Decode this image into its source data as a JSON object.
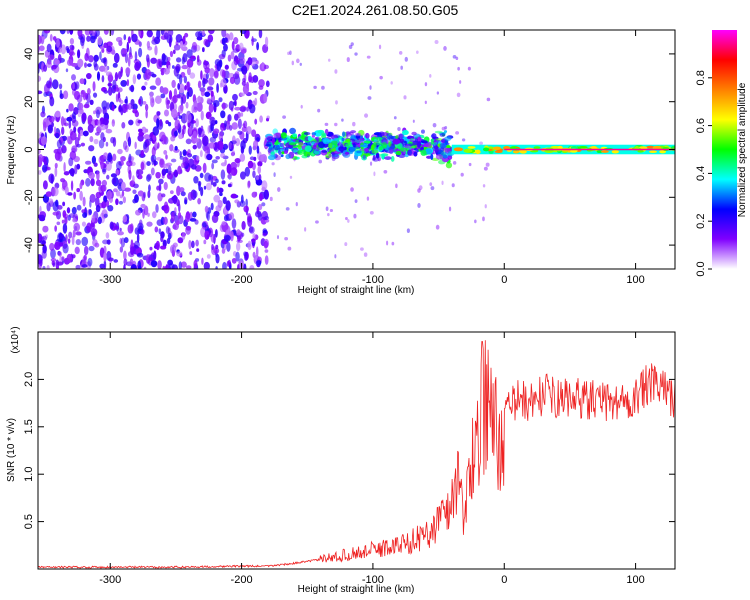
{
  "figure_title": "C2E1.2024.261.08.50.G05",
  "chart_data": [
    {
      "type": "heatmap",
      "title": "C2E1.2024.261.08.50.G05",
      "xlabel": "Height of straight line (km)",
      "ylabel": "Frequency (Hz)",
      "xlim": [
        -355,
        130
      ],
      "ylim": [
        -50,
        50
      ],
      "xticks": [
        -300,
        -200,
        -100,
        0,
        100
      ],
      "yticks": [
        -40,
        -20,
        0,
        20,
        40
      ],
      "colorbar": {
        "label": "Normalized spectral amplitude",
        "range": [
          0,
          1
        ],
        "ticks": [
          0.0,
          0.2,
          0.4,
          0.6,
          0.8
        ],
        "colormap": [
          "#ffffff",
          "#8000ff",
          "#0000ff",
          "#00ffff",
          "#00ff00",
          "#ffff00",
          "#ff8000",
          "#ff0000",
          "#ff00ff"
        ]
      },
      "regions": [
        {
          "x_range": [
            -355,
            -180
          ],
          "freq_range": [
            -50,
            50
          ],
          "amplitude": 0.15,
          "description": "noise"
        },
        {
          "x_range": [
            -180,
            -40
          ],
          "freq_range": [
            -10,
            12
          ],
          "amplitude": 0.3
        },
        {
          "x_range": [
            -40,
            130
          ],
          "freq_range": [
            -2,
            2
          ],
          "amplitude": 0.7
        }
      ],
      "grid": false
    },
    {
      "type": "line",
      "xlabel": "Height of straight line (km)",
      "ylabel": "SNR (10 * v/v)",
      "y_multiplier_label": "(x10⁴)",
      "xlim": [
        -355,
        130
      ],
      "ylim": [
        0,
        2.5
      ],
      "xticks": [
        -300,
        -200,
        -100,
        0,
        100
      ],
      "yticks": [
        0.5,
        1.0,
        1.5,
        2.0
      ],
      "series": [
        {
          "color": "#ee2222",
          "x": [
            -355,
            -300,
            -250,
            -200,
            -180,
            -160,
            -140,
            -120,
            -100,
            -80,
            -60,
            -50,
            -40,
            -35,
            -30,
            -25,
            -20,
            -15,
            -10,
            -5,
            0,
            10,
            20,
            30,
            40,
            60,
            80,
            100,
            110,
            120,
            130
          ],
          "y": [
            0.02,
            0.02,
            0.02,
            0.03,
            0.03,
            0.06,
            0.1,
            0.15,
            0.2,
            0.25,
            0.35,
            0.5,
            0.7,
            1.0,
            0.5,
            1.2,
            1.4,
            1.8,
            1.6,
            1.35,
            1.6,
            1.8,
            1.75,
            1.85,
            1.8,
            1.8,
            1.75,
            1.8,
            1.95,
            1.9,
            1.8
          ]
        }
      ],
      "grid": false
    }
  ]
}
